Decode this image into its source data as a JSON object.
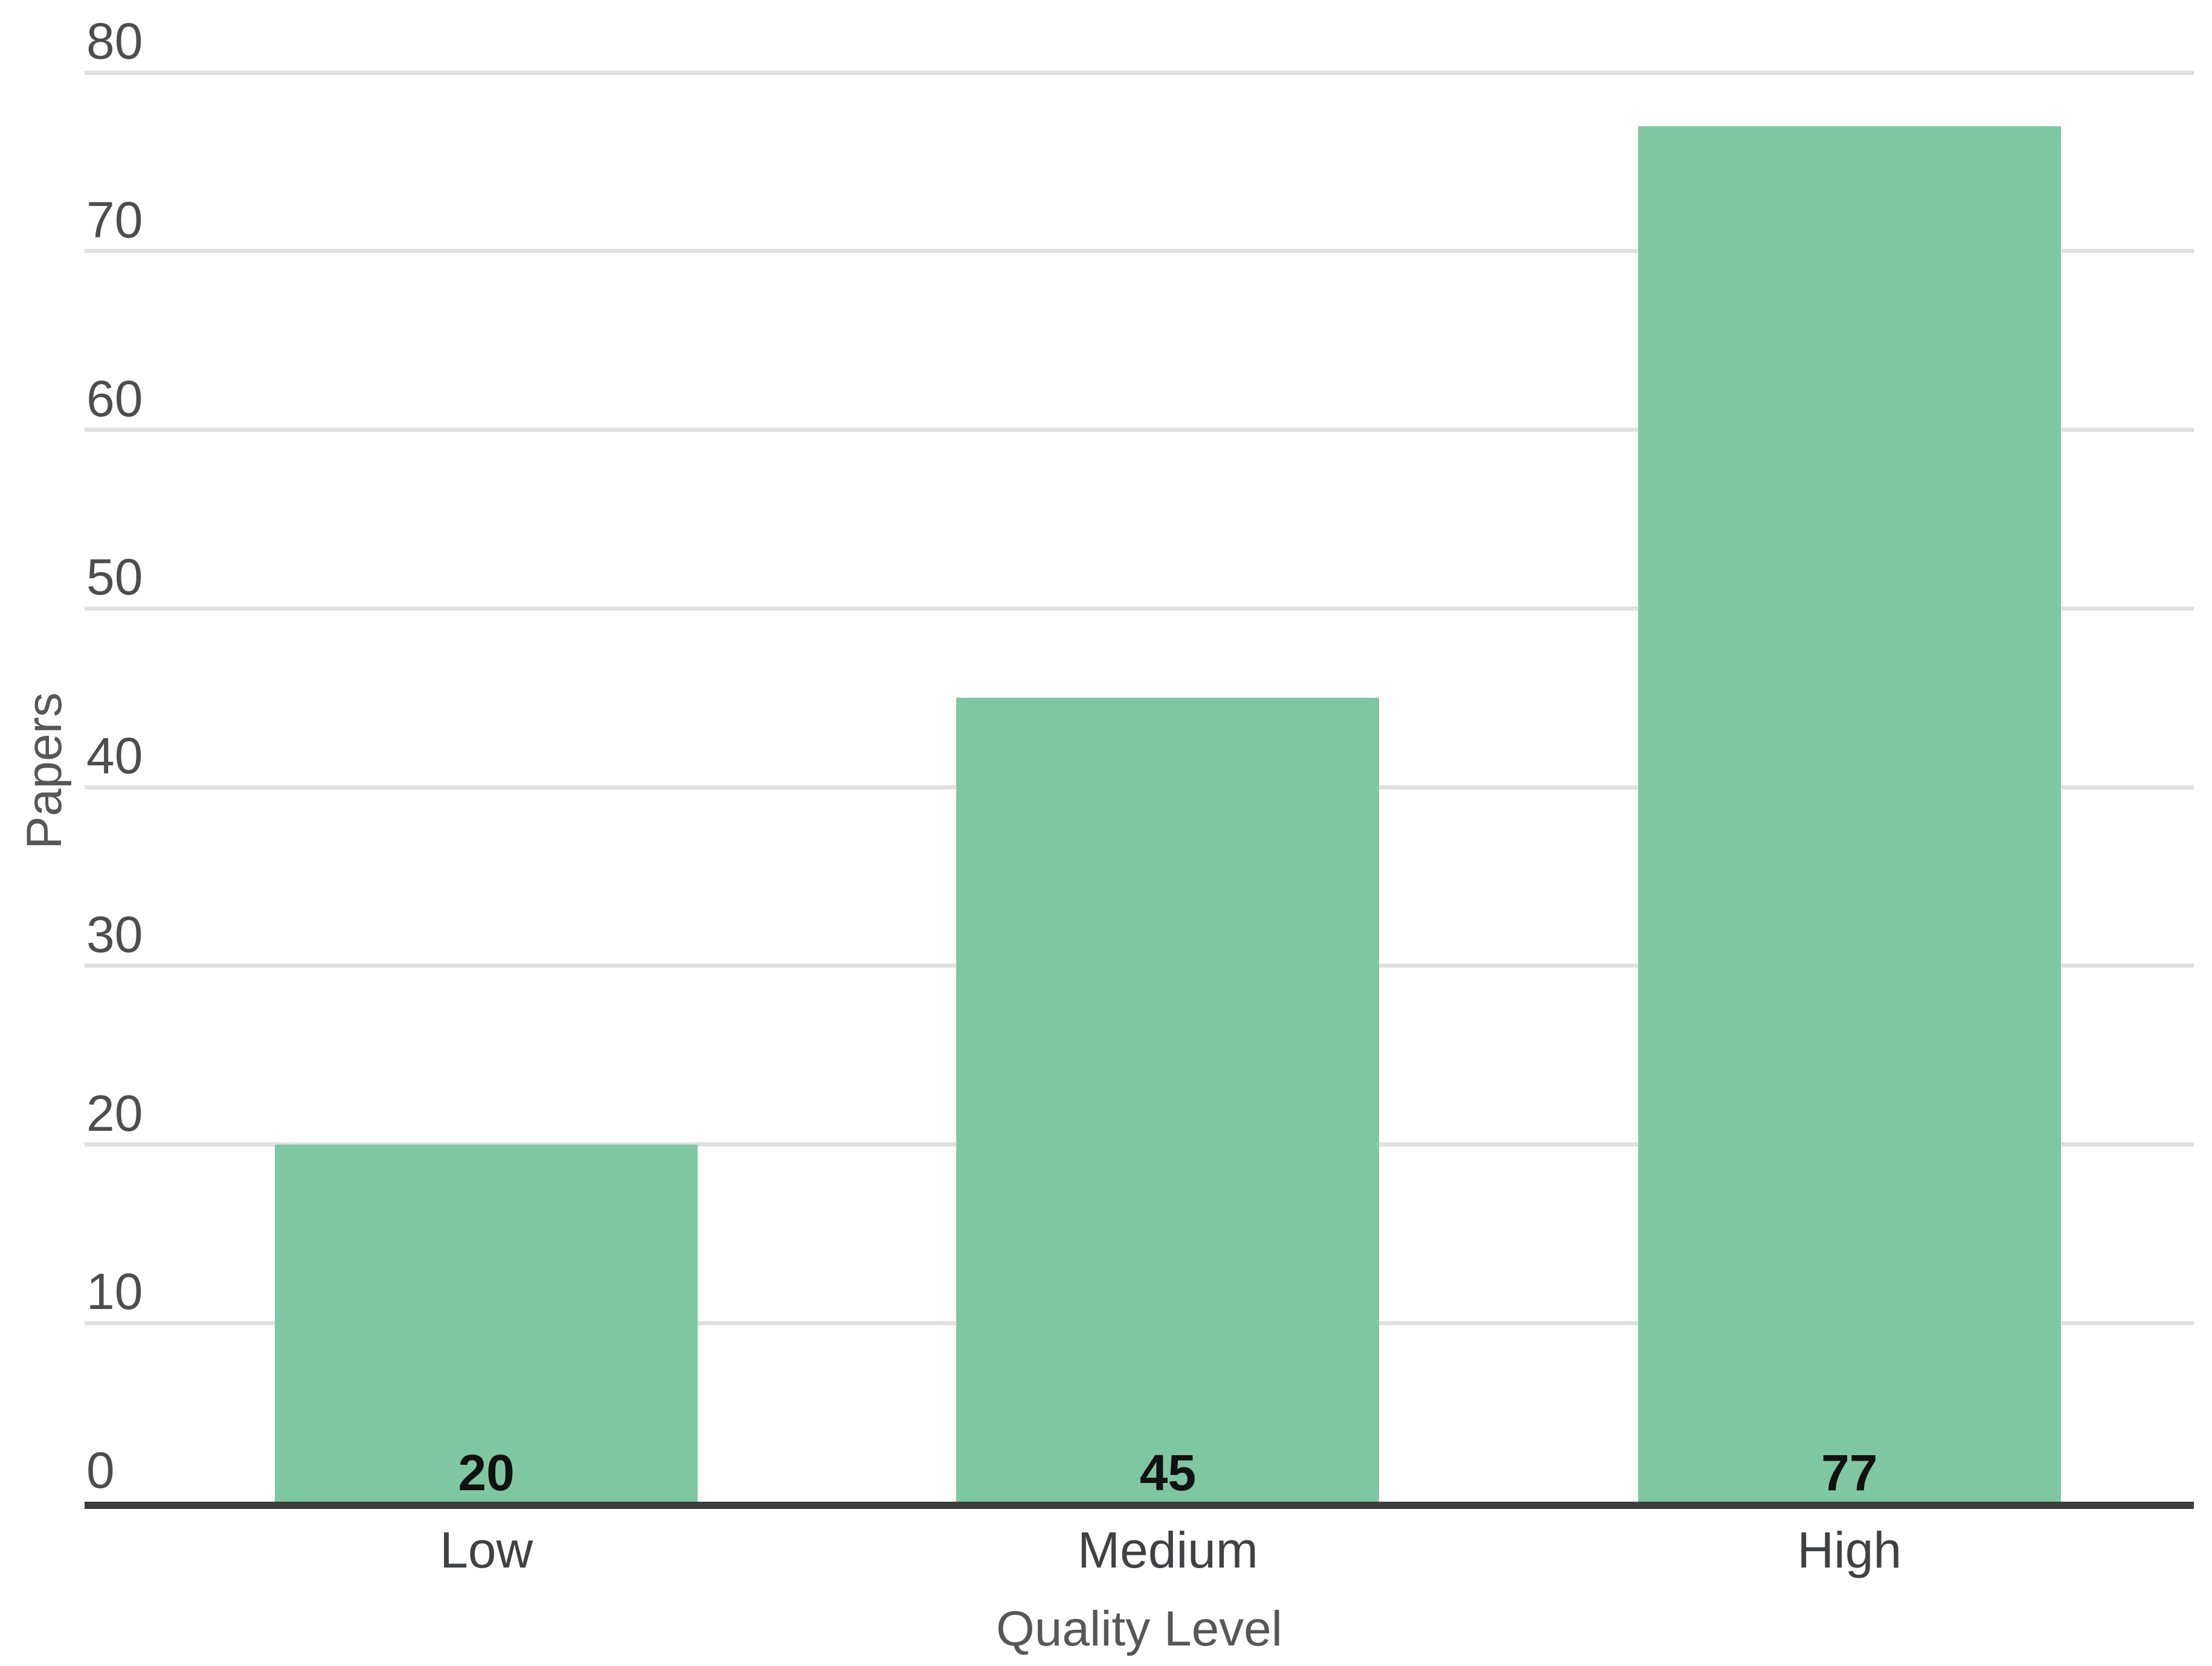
{
  "chart_data": {
    "type": "bar",
    "title": "",
    "categories": [
      "Low",
      "Medium",
      "High"
    ],
    "values": [
      20,
      45,
      77
    ],
    "value_labels": [
      "20",
      "45",
      "77"
    ],
    "xlabel": "Quality Level",
    "ylabel": "Papers",
    "ylim": [
      0,
      80
    ],
    "ytick_step": 10,
    "ytick_labels": [
      "0",
      "10",
      "20",
      "30",
      "40",
      "50",
      "60",
      "70",
      "80"
    ],
    "grid": true,
    "legend": false,
    "colors": {
      "bar": "#7FC7A2",
      "gridline": "#E0E0E0",
      "axis_line": "#3C3C3C",
      "tick_label": "#4D4D4D",
      "category_label": "#3F4245",
      "value_label": "#111111",
      "axis_title": "#575757",
      "background": "#FFFFFF"
    }
  }
}
